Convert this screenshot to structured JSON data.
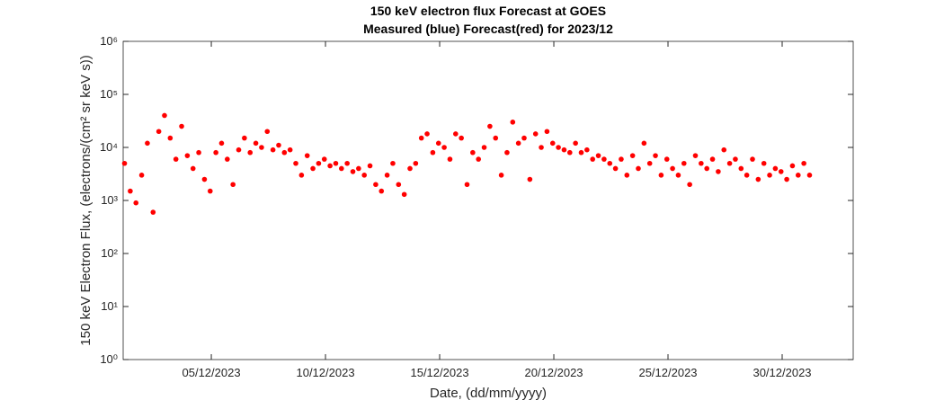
{
  "chart_data": {
    "type": "scatter",
    "title": "150 keV electron flux Forecast at GOES",
    "subtitle": "Measured (blue) Forecast(red) for 2023/12",
    "x_label": "Date, (dd/mm/yyyy)",
    "y_label": "150 keV Electron Flux, (electrons/(cm² sr keV s))",
    "log_y": true,
    "xlim": [
      1.14,
      33.11
    ],
    "xticks": [
      {
        "value": 5,
        "label": "05/12/2023"
      },
      {
        "value": 10,
        "label": "10/12/2023"
      },
      {
        "value": 15,
        "label": "15/12/2023"
      },
      {
        "value": 20,
        "label": "20/12/2023"
      },
      {
        "value": 25,
        "label": "25/12/2023"
      },
      {
        "value": 30,
        "label": "30/12/2023"
      }
    ],
    "ylim": [
      1,
      1000000
    ],
    "yticks": [
      {
        "value": 1,
        "label": "10⁰"
      },
      {
        "value": 10,
        "label": "10¹"
      },
      {
        "value": 100,
        "label": "10²"
      },
      {
        "value": 1000,
        "label": "10³"
      },
      {
        "value": 10000,
        "label": "10⁴"
      },
      {
        "value": 100000,
        "label": "10⁵"
      },
      {
        "value": 1000000,
        "label": "10⁶"
      }
    ],
    "series": [
      {
        "name": "Forecast",
        "color": "#ff0000",
        "x": [
          1.2,
          1.45,
          1.7,
          1.95,
          2.2,
          2.45,
          2.7,
          2.95,
          3.2,
          3.45,
          3.7,
          3.95,
          4.2,
          4.45,
          4.7,
          4.95,
          5.2,
          5.45,
          5.7,
          5.95,
          6.2,
          6.45,
          6.7,
          6.95,
          7.2,
          7.45,
          7.7,
          7.95,
          8.2,
          8.45,
          8.7,
          8.95,
          9.2,
          9.45,
          9.7,
          9.95,
          10.2,
          10.45,
          10.7,
          10.95,
          11.2,
          11.45,
          11.7,
          11.95,
          12.2,
          12.45,
          12.7,
          12.95,
          13.2,
          13.45,
          13.7,
          13.95,
          14.2,
          14.45,
          14.7,
          14.95,
          15.2,
          15.45,
          15.7,
          15.95,
          16.2,
          16.45,
          16.7,
          16.95,
          17.2,
          17.45,
          17.7,
          17.95,
          18.2,
          18.45,
          18.7,
          18.95,
          19.2,
          19.45,
          19.7,
          19.95,
          20.2,
          20.45,
          20.7,
          20.95,
          21.2,
          21.45,
          21.7,
          21.95,
          22.2,
          22.45,
          22.7,
          22.95,
          23.2,
          23.45,
          23.7,
          23.95,
          24.2,
          24.45,
          24.7,
          24.95,
          25.2,
          25.45,
          25.7,
          25.95,
          26.2,
          26.45,
          26.7,
          26.95,
          27.2,
          27.45,
          27.7,
          27.95,
          28.2,
          28.45,
          28.7,
          28.95,
          29.2,
          29.45,
          29.7,
          29.95,
          30.2,
          30.45,
          30.7,
          30.95,
          31.2
        ],
        "values": [
          5000,
          1500,
          900,
          3000,
          12000,
          600,
          20000,
          40000,
          15000,
          6000,
          25000,
          7000,
          4000,
          8000,
          2500,
          1500,
          8000,
          12000,
          6000,
          2000,
          9000,
          15000,
          8000,
          12000,
          10000,
          20000,
          9000,
          11000,
          8000,
          9000,
          5000,
          3000,
          7000,
          4000,
          5000,
          6000,
          4500,
          5000,
          4000,
          5000,
          3500,
          4000,
          3000,
          4500,
          2000,
          1500,
          3000,
          5000,
          2000,
          1300,
          4000,
          5000,
          15000,
          18000,
          8000,
          12000,
          10000,
          6000,
          18000,
          15000,
          2000,
          8000,
          6000,
          10000,
          25000,
          15000,
          3000,
          8000,
          30000,
          12000,
          15000,
          2500,
          18000,
          10000,
          20000,
          12000,
          10000,
          9000,
          8000,
          12000,
          8000,
          9000,
          6000,
          7000,
          6000,
          5000,
          4000,
          6000,
          3000,
          7000,
          4000,
          12000,
          5000,
          7000,
          3000,
          6000,
          4000,
          3000,
          5000,
          2000,
          7000,
          5000,
          4000,
          6000,
          3500,
          9000,
          5000,
          6000,
          4000,
          3000,
          6000,
          2500,
          5000,
          3000,
          4000,
          3500,
          2500,
          4500,
          3000,
          5000,
          3000
        ]
      }
    ]
  }
}
